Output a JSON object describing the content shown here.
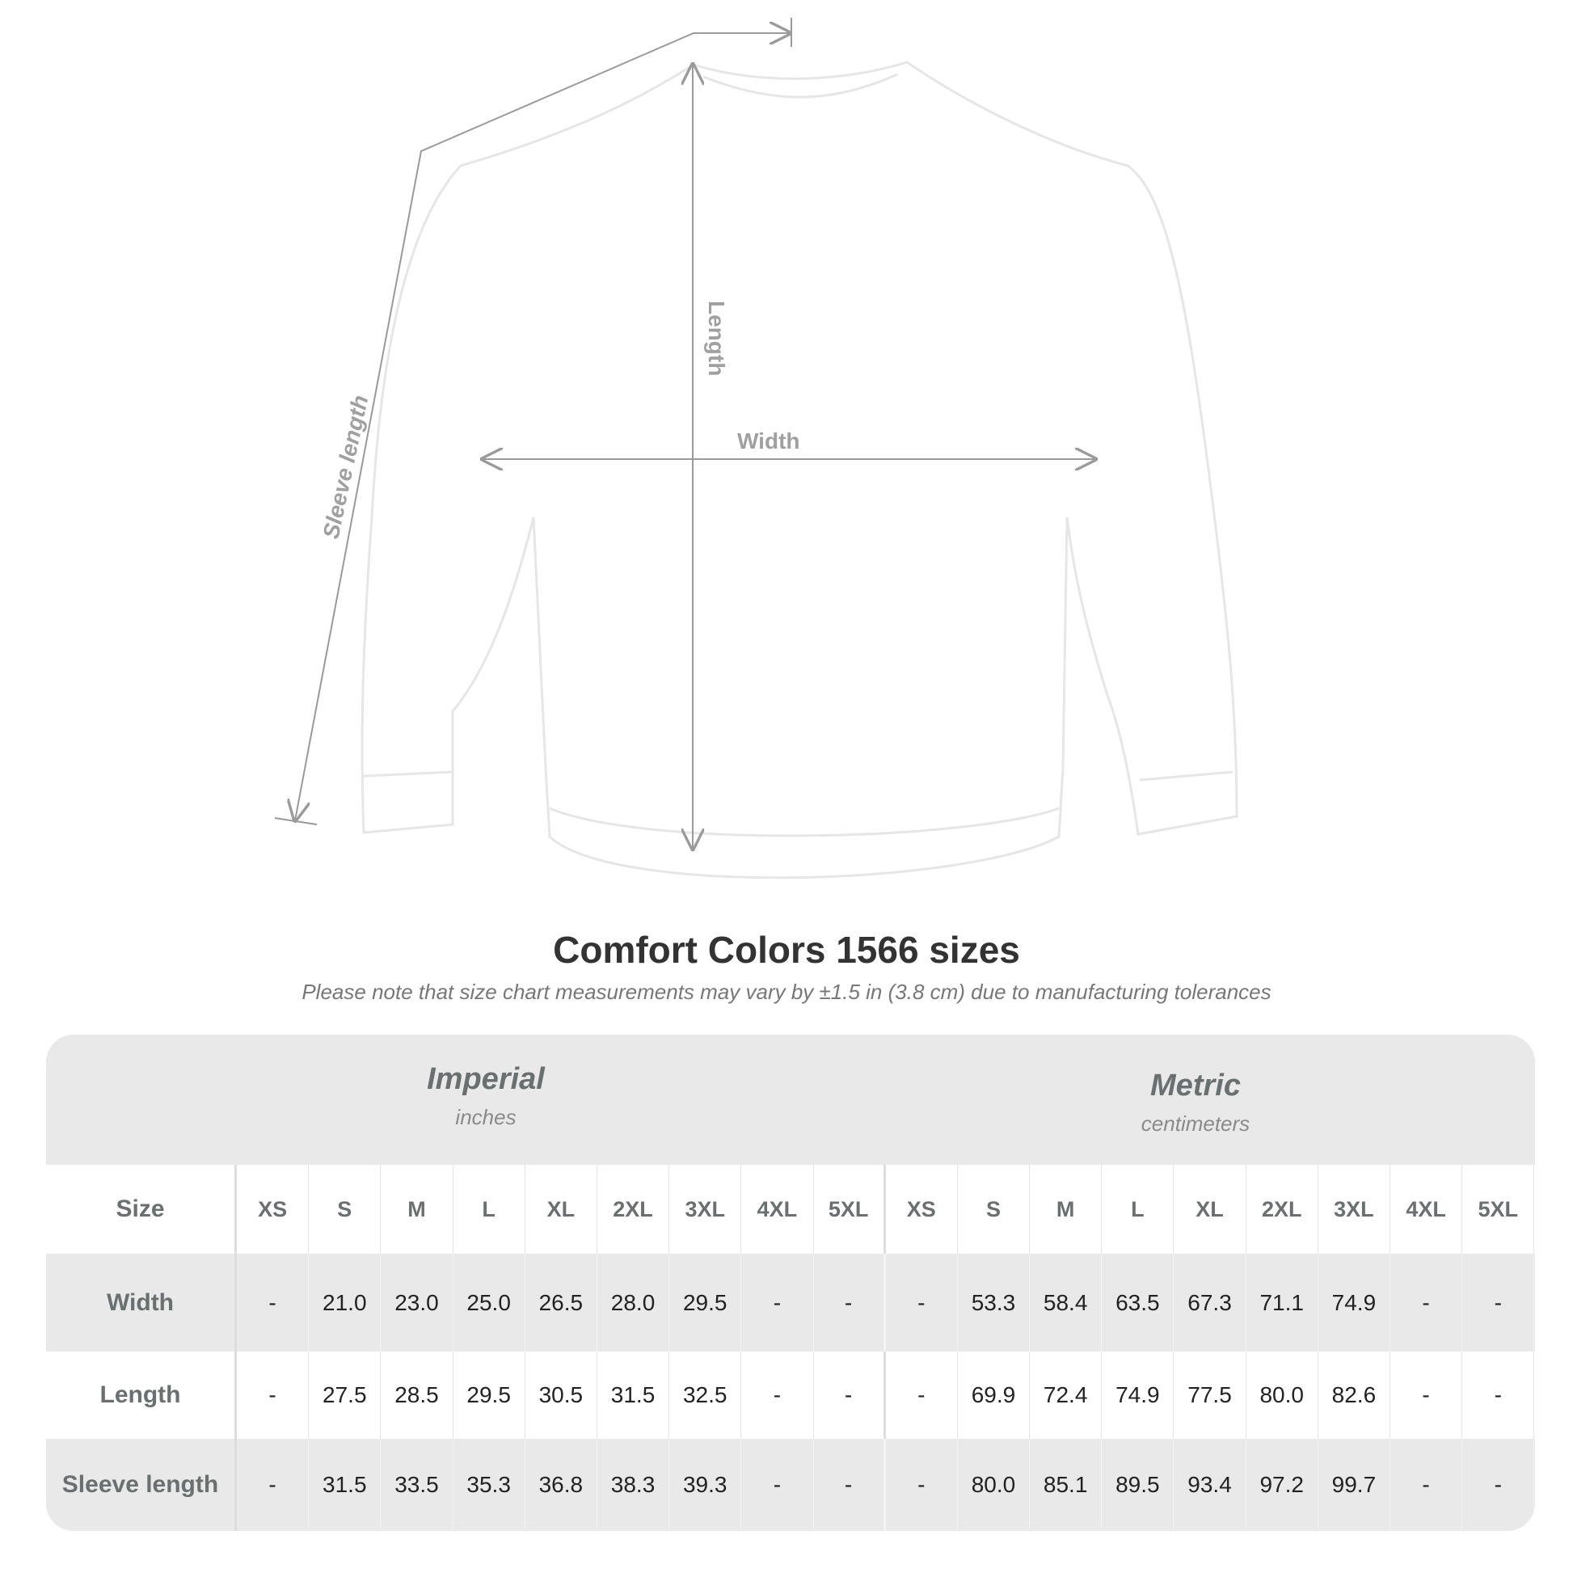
{
  "diagram": {
    "length_label": "Length",
    "width_label": "Width",
    "sleeve_label": "Sleeve length",
    "garment_color": "#ffffff",
    "line_color": "#9a9a9a"
  },
  "title": "Comfort Colors 1566 sizes",
  "note": "Please note that size chart measurements may vary by ±1.5 in (3.8 cm) due to manufacturing tolerances",
  "table": {
    "groups": [
      {
        "name": "Imperial",
        "unit": "inches"
      },
      {
        "name": "Metric",
        "unit": "centimeters"
      }
    ],
    "size_label": "Size",
    "sizes": [
      "XS",
      "S",
      "M",
      "L",
      "XL",
      "2XL",
      "3XL",
      "4XL",
      "5XL",
      "XS",
      "S",
      "M",
      "L",
      "XL",
      "2XL",
      "3XL",
      "4XL",
      "5XL"
    ],
    "rows": [
      {
        "label": "Width",
        "values": [
          "-",
          "21.0",
          "23.0",
          "25.0",
          "26.5",
          "28.0",
          "29.5",
          "-",
          "-",
          "-",
          "53.3",
          "58.4",
          "63.5",
          "67.3",
          "71.1",
          "74.9",
          "-",
          "-"
        ]
      },
      {
        "label": "Length",
        "values": [
          "-",
          "27.5",
          "28.5",
          "29.5",
          "30.5",
          "31.5",
          "32.5",
          "-",
          "-",
          "-",
          "69.9",
          "72.4",
          "74.9",
          "77.5",
          "80.0",
          "82.6",
          "-",
          "-"
        ]
      },
      {
        "label": "Sleeve length",
        "values": [
          "-",
          "31.5",
          "33.5",
          "35.3",
          "36.8",
          "38.3",
          "39.3",
          "-",
          "-",
          "-",
          "80.0",
          "85.1",
          "89.5",
          "93.4",
          "97.2",
          "99.7",
          "-",
          "-"
        ]
      }
    ]
  }
}
